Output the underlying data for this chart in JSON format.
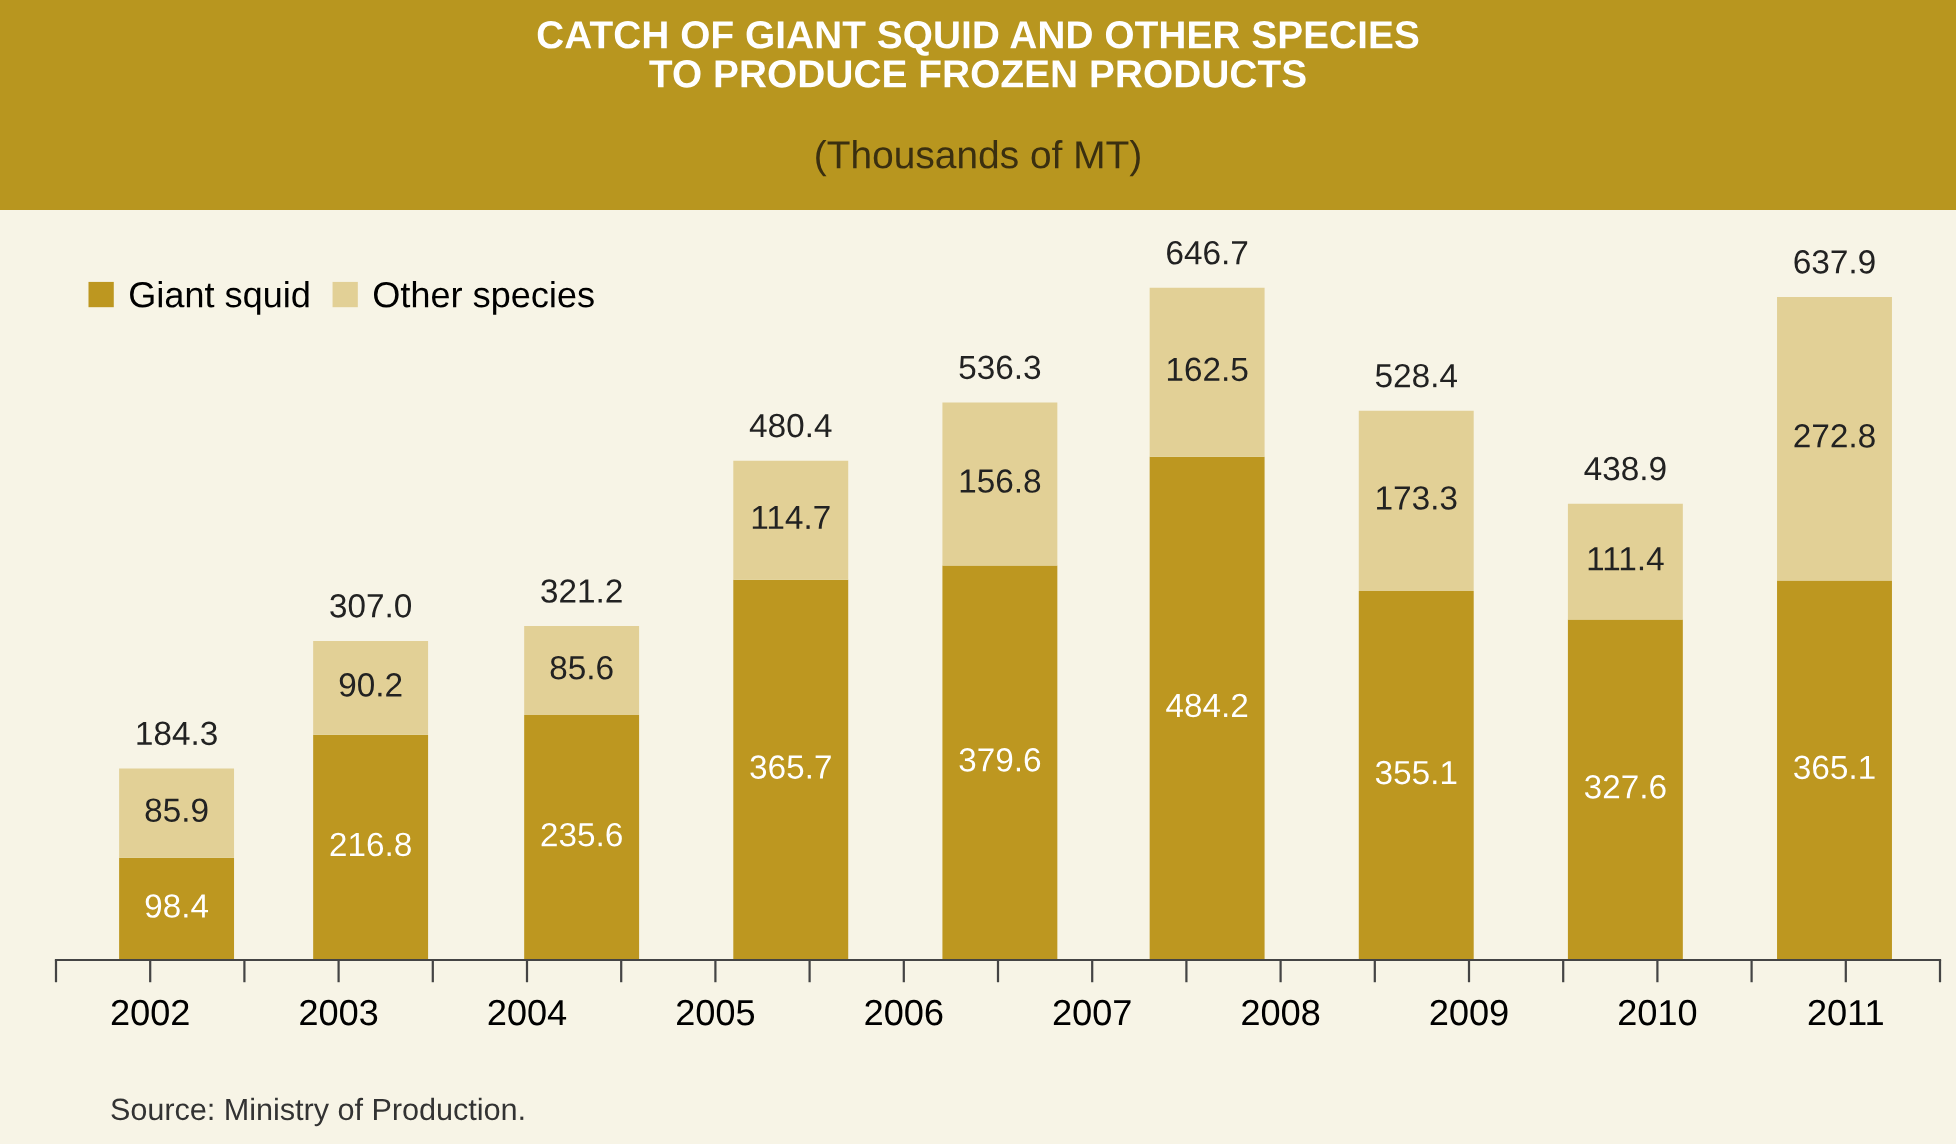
{
  "chart_data": {
    "type": "bar",
    "stacked": true,
    "title": "CATCH OF GIANT SQUID AND OTHER SPECIES\nTO PRODUCE FROZEN PRODUCTS",
    "subtitle": "(Thousands of MT)",
    "x": [
      2002.14,
      2003.17,
      2004.29,
      2005.4,
      2006.51,
      2007.61,
      2008.72,
      2009.83,
      2010.94
    ],
    "series": [
      {
        "name": "Giant squid",
        "color": "#bd9720",
        "values": [
          98.4,
          216.8,
          235.6,
          365.7,
          379.6,
          484.2,
          355.1,
          327.6,
          365.1
        ]
      },
      {
        "name": "Other species",
        "color": "#e2d096",
        "values": [
          85.9,
          90.2,
          85.6,
          114.7,
          156.8,
          162.5,
          173.3,
          111.4,
          272.8
        ]
      }
    ],
    "totals": [
      "184.3",
      "307.0",
      "321.2",
      "480.4",
      "536.3",
      "646.7",
      "528.4",
      "438.9",
      "637.9"
    ],
    "data_labels": true,
    "xlim": [
      2001.5,
      2011.5
    ],
    "xticks": [
      {
        "value": 2001.5,
        "label": null
      },
      {
        "value": 2002,
        "label": "2002"
      },
      {
        "value": 2002.5,
        "label": null
      },
      {
        "value": 2003,
        "label": "2003"
      },
      {
        "value": 2003.5,
        "label": null
      },
      {
        "value": 2004,
        "label": "2004"
      },
      {
        "value": 2004.5,
        "label": null
      },
      {
        "value": 2005,
        "label": "2005"
      },
      {
        "value": 2005.5,
        "label": null
      },
      {
        "value": 2006,
        "label": "2006"
      },
      {
        "value": 2006.5,
        "label": null
      },
      {
        "value": 2007,
        "label": "2007"
      },
      {
        "value": 2007.5,
        "label": null
      },
      {
        "value": 2008,
        "label": "2008"
      },
      {
        "value": 2008.5,
        "label": null
      },
      {
        "value": 2009,
        "label": "2009"
      },
      {
        "value": 2009.5,
        "label": null
      },
      {
        "value": 2010,
        "label": "2010"
      },
      {
        "value": 2010.5,
        "label": null
      },
      {
        "value": 2011,
        "label": "2011"
      },
      {
        "value": 2011.5,
        "label": null
      }
    ],
    "tick_labels": "x",
    "grid": false,
    "legend": "top left",
    "annotations": [
      "Source: Ministry of Production."
    ]
  }
}
